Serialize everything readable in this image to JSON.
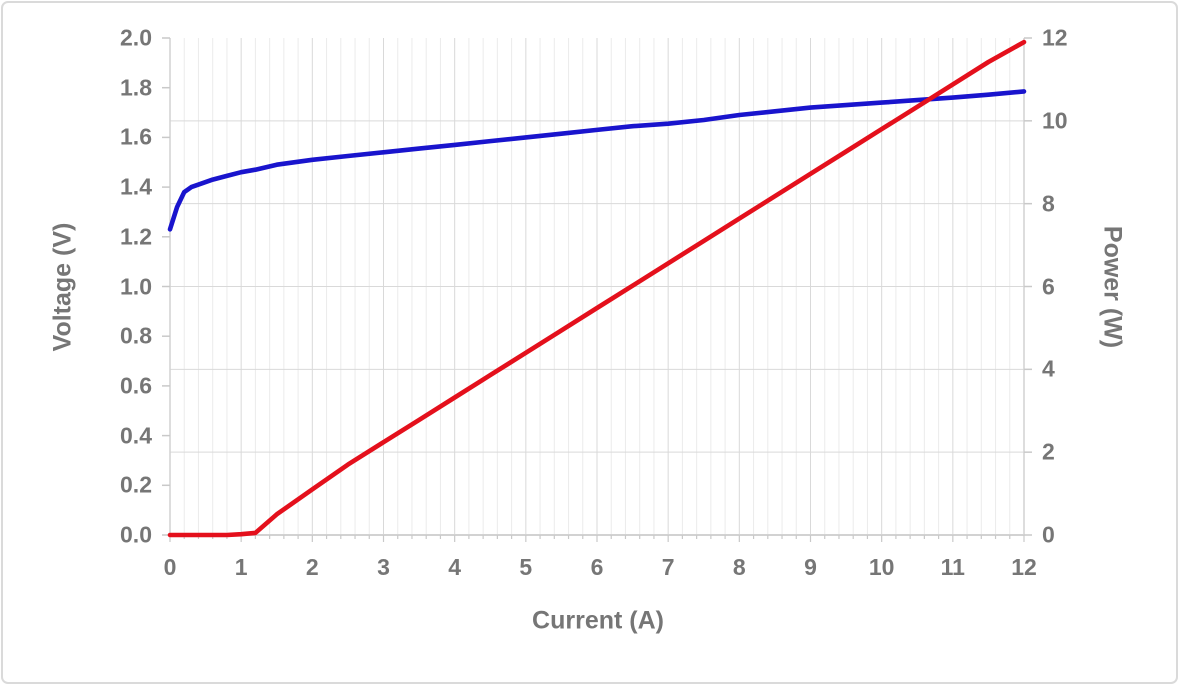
{
  "chart_data": {
    "type": "line",
    "title": "",
    "xlabel": "Current (A)",
    "ylabel_left": "Voltage (V)",
    "ylabel_right": "Power (W)",
    "x_axis": {
      "min": 0,
      "max": 12,
      "major": 1,
      "minor": 0.2,
      "tick_labels": [
        "0",
        "1",
        "2",
        "3",
        "4",
        "5",
        "6",
        "7",
        "8",
        "9",
        "10",
        "11",
        "12"
      ]
    },
    "y_left_axis": {
      "min": 0.0,
      "max": 2.0,
      "major": 0.2,
      "tick_labels": [
        "0.0",
        "0.2",
        "0.4",
        "0.6",
        "0.8",
        "1.0",
        "1.2",
        "1.4",
        "1.6",
        "1.8",
        "2.0"
      ]
    },
    "y_right_axis": {
      "min": 0,
      "max": 12,
      "major": 2,
      "tick_labels": [
        "0",
        "2",
        "4",
        "6",
        "8",
        "10",
        "12"
      ]
    },
    "grid": {
      "horizontal_every_w": 2,
      "vertical_major_every_a": 1,
      "vertical_minor_every_a": 0.2
    },
    "legend": "none",
    "x": [
      0,
      0.1,
      0.2,
      0.3,
      0.4,
      0.6,
      0.8,
      1.0,
      1.2,
      1.5,
      2.0,
      2.5,
      3.0,
      3.5,
      4.0,
      4.5,
      5.0,
      5.5,
      6.0,
      6.5,
      7.0,
      7.5,
      8.0,
      8.5,
      9.0,
      9.5,
      10.0,
      10.5,
      11.0,
      11.5,
      12.0
    ],
    "series": [
      {
        "name": "Voltage (V)",
        "axis": "left",
        "color": "#1914cd",
        "values": [
          1.23,
          1.32,
          1.38,
          1.4,
          1.41,
          1.43,
          1.445,
          1.46,
          1.47,
          1.49,
          1.51,
          1.525,
          1.54,
          1.555,
          1.57,
          1.585,
          1.6,
          1.615,
          1.63,
          1.645,
          1.655,
          1.67,
          1.69,
          1.705,
          1.72,
          1.73,
          1.74,
          1.75,
          1.76,
          1.772,
          1.785
        ]
      },
      {
        "name": "Power (W)",
        "axis": "right",
        "color": "#e4101c",
        "values": [
          0,
          0,
          0,
          0,
          0,
          0,
          0,
          0.02,
          0.05,
          0.5,
          1.1,
          1.7,
          2.24,
          2.78,
          3.32,
          3.86,
          4.4,
          4.94,
          5.48,
          6.02,
          6.56,
          7.1,
          7.64,
          8.18,
          8.72,
          9.26,
          9.8,
          10.34,
          10.88,
          11.42,
          11.9
        ]
      }
    ]
  },
  "colors": {
    "label_gray": "#767676",
    "grid_minor": "#ebebeb",
    "grid_major": "#d9d9d9",
    "axis_line": "#d2d2d2",
    "tick_mark": "#c9c9c9",
    "card_border": "#dadada",
    "background": "#ffffff"
  }
}
